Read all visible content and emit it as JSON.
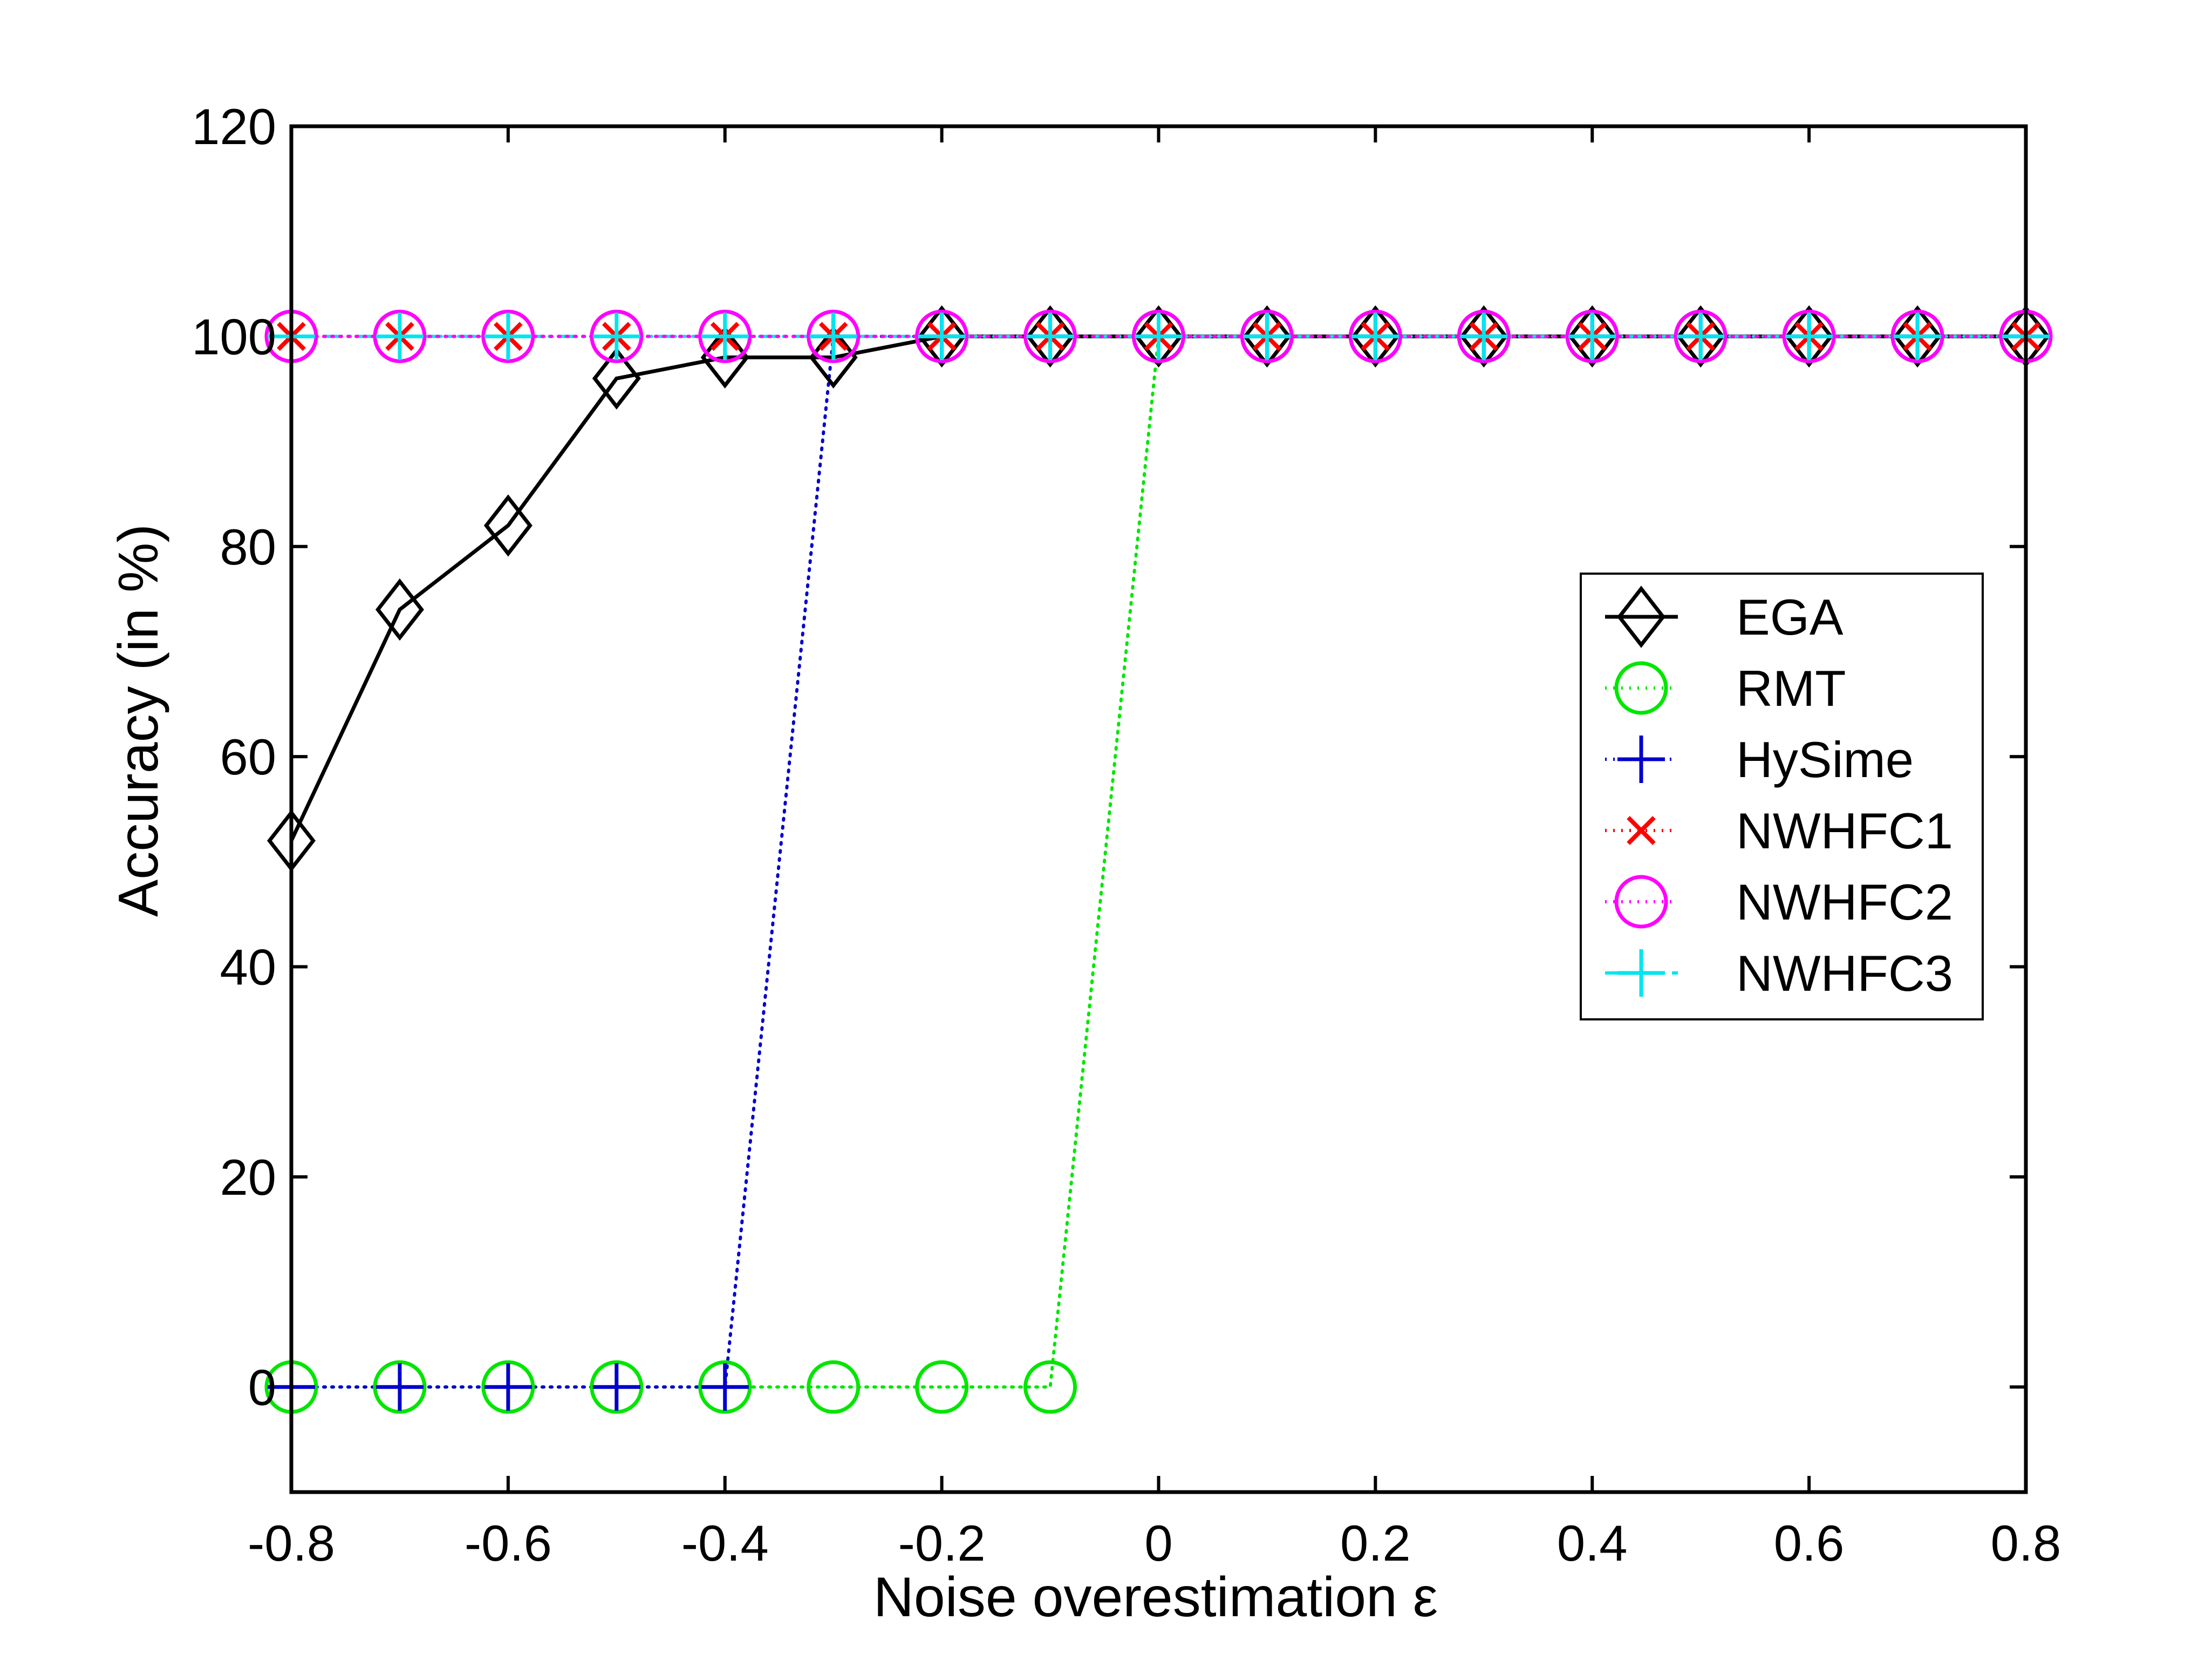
{
  "chart_data": {
    "type": "line",
    "title": "",
    "xlabel": "Noise overestimation ε",
    "ylabel": "Accuracy (in %)",
    "xlim": [
      -0.8,
      0.8
    ],
    "ylim": [
      -10,
      120
    ],
    "xticks": [
      -0.8,
      -0.6,
      -0.4,
      -0.2,
      0,
      0.2,
      0.4,
      0.6,
      0.8
    ],
    "xtick_labels": [
      "-0.8",
      "-0.6",
      "-0.4",
      "-0.2",
      "0",
      "0.2",
      "0.4",
      "0.6",
      "0.8"
    ],
    "yticks": [
      0,
      20,
      40,
      60,
      80,
      100,
      120
    ],
    "ytick_labels": [
      "0",
      "20",
      "40",
      "60",
      "80",
      "100",
      "120"
    ],
    "grid": false,
    "legend_position": "right",
    "x": [
      -0.8,
      -0.7,
      -0.6,
      -0.5,
      -0.4,
      -0.3,
      -0.2,
      -0.1,
      0,
      0.1,
      0.2,
      0.3,
      0.4,
      0.5,
      0.6,
      0.7,
      0.8
    ],
    "series": [
      {
        "name": "EGA",
        "color": "#000000",
        "line_style": "solid",
        "marker": "diamond",
        "values": [
          52,
          74,
          82,
          96,
          98,
          98,
          100,
          100,
          100,
          100,
          100,
          100,
          100,
          100,
          100,
          100,
          100
        ]
      },
      {
        "name": "RMT",
        "color": "#00e600",
        "line_style": "dotted",
        "marker": "circle",
        "values": [
          0,
          0,
          0,
          0,
          0,
          0,
          0,
          0,
          100,
          100,
          100,
          100,
          100,
          100,
          100,
          100,
          100
        ]
      },
      {
        "name": "HySime",
        "color": "#0000cc",
        "line_style": "dotted",
        "marker": "plus",
        "values": [
          0,
          0,
          0,
          0,
          0,
          100,
          100,
          100,
          100,
          100,
          100,
          100,
          100,
          100,
          100,
          100,
          100
        ]
      },
      {
        "name": "NWHFC1",
        "color": "#ff0000",
        "line_style": "dotted",
        "marker": "x",
        "values": [
          100,
          100,
          100,
          100,
          100,
          100,
          100,
          100,
          100,
          100,
          100,
          100,
          100,
          100,
          100,
          100,
          100
        ]
      },
      {
        "name": "NWHFC2",
        "color": "#ff00ff",
        "line_style": "dotted",
        "marker": "circle",
        "values": [
          100,
          100,
          100,
          100,
          100,
          100,
          100,
          100,
          100,
          100,
          100,
          100,
          100,
          100,
          100,
          100,
          100
        ]
      },
      {
        "name": "NWHFC3",
        "color": "#00e5ee",
        "line_style": "dashdot",
        "marker": "plus",
        "values": [
          100,
          100,
          100,
          100,
          100,
          100,
          100,
          100,
          100,
          100,
          100,
          100,
          100,
          100,
          100,
          100,
          100
        ]
      }
    ]
  }
}
